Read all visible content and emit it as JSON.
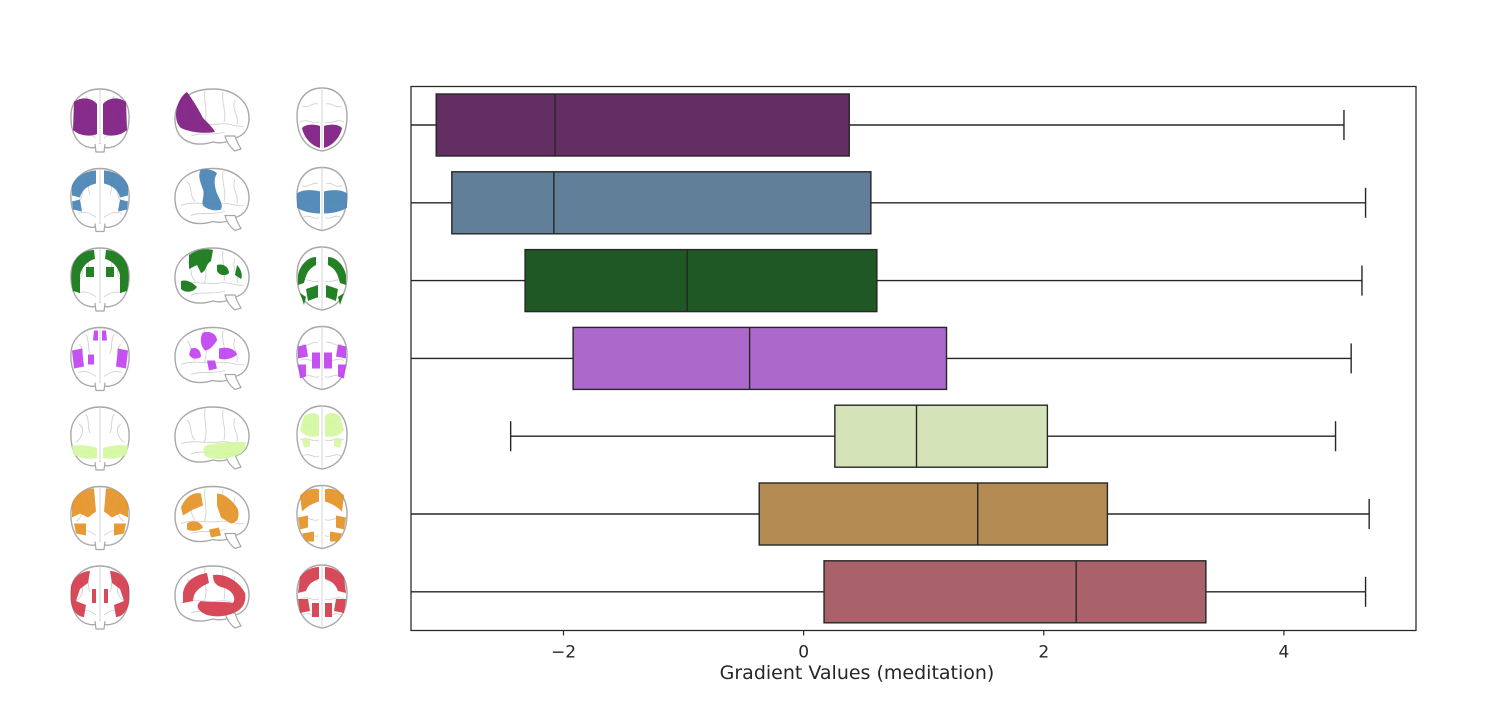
{
  "chart_data": {
    "type": "boxplot",
    "orientation": "horizontal",
    "title": "",
    "xlabel": "Gradient Values (meditation)",
    "ylabel": "",
    "xlim": [
      -3.27,
      5.1
    ],
    "xticks": [
      -2,
      0,
      2,
      4
    ],
    "xtick_labels": [
      "−2",
      "0",
      "2",
      "4"
    ],
    "grid": false,
    "legend": "none",
    "series": [
      {
        "color": "#632e62",
        "brain_color": "#7d1a80",
        "whislo": -3.27,
        "q1": -3.06,
        "median": -2.07,
        "q3": 0.38,
        "whishi": 4.5
      },
      {
        "color": "#617f98",
        "brain_color": "#4682b4",
        "whislo": -3.27,
        "q1": -2.93,
        "median": -2.08,
        "q3": 0.56,
        "whishi": 4.68
      },
      {
        "color": "#1f5825",
        "brain_color": "#127612",
        "whislo": -3.27,
        "q1": -2.32,
        "median": -0.97,
        "q3": 0.61,
        "whishi": 4.65
      },
      {
        "color": "#ad69c9",
        "brain_color": "#c042f0",
        "whislo": -3.27,
        "q1": -1.92,
        "median": -0.45,
        "q3": 1.19,
        "whishi": 4.56
      },
      {
        "color": "#d5e4b8",
        "brain_color": "#d4f7a0",
        "whislo": -2.44,
        "q1": 0.26,
        "median": 0.94,
        "q3": 2.03,
        "whishi": 4.43
      },
      {
        "color": "#b38b53",
        "brain_color": "#e49225",
        "whislo": -3.27,
        "q1": -0.37,
        "median": 1.45,
        "q3": 2.53,
        "whishi": 4.71
      },
      {
        "color": "#a96269",
        "brain_color": "#d23b4c",
        "whislo": -3.27,
        "q1": 0.17,
        "median": 2.27,
        "q3": 3.35,
        "whishi": 4.68
      }
    ]
  }
}
